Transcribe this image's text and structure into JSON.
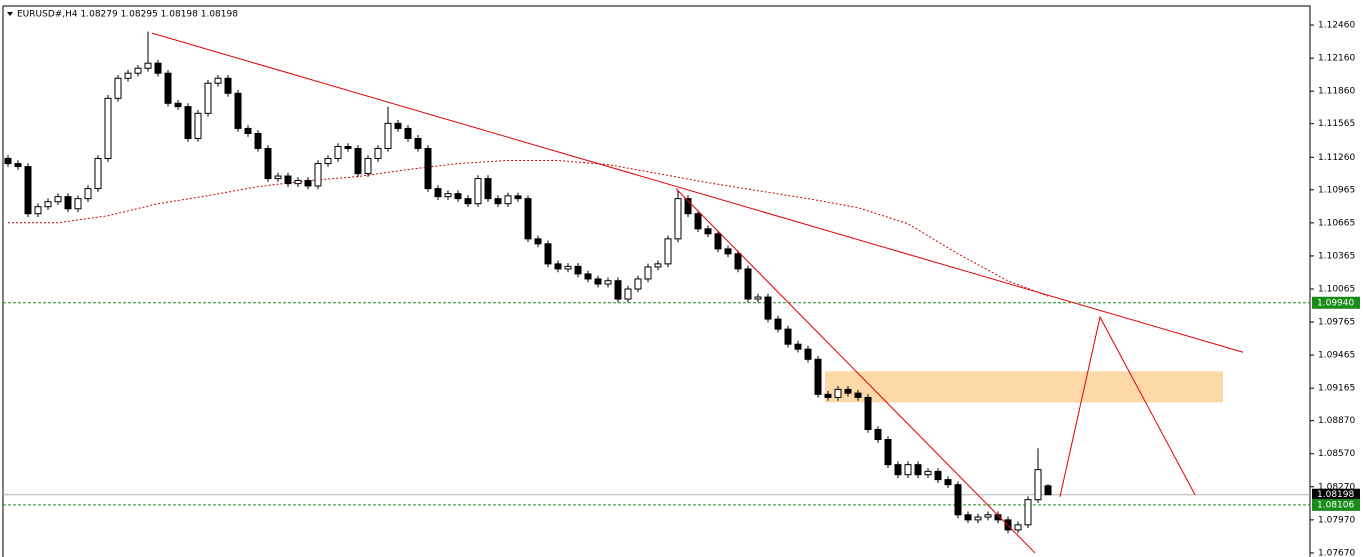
{
  "chart_data": {
    "type": "candlestick",
    "title": "EURUSD#,H4  1.08279 1.08295 1.08198 1.08198",
    "xlim": [
      -0.5,
      130.2
    ],
    "ylim": [
      1.07633,
      1.12633
    ],
    "yticks": [
      {
        "value": 1.1246,
        "label": "1.12460"
      },
      {
        "value": 1.1216,
        "label": "1.12160"
      },
      {
        "value": 1.1186,
        "label": "1.11860"
      },
      1.11565,
      {
        "value": 1.1126,
        "label": "1.11260"
      },
      1.10965,
      1.10665,
      1.10365,
      1.10065,
      1.09765,
      1.09465,
      1.09165,
      {
        "value": 1.0887,
        "label": "1.08870"
      },
      {
        "value": 1.0857,
        "label": "1.08570"
      },
      {
        "value": 1.0827,
        "label": "1.08270"
      },
      {
        "value": 1.0797,
        "label": "1.07970"
      },
      {
        "value": 1.0767,
        "label": "1.07670"
      }
    ],
    "up_color": "#ffffff",
    "down_color": "#000000",
    "open": [
      1.1125,
      1.11203,
      1.11176,
      1.10748,
      1.10812,
      1.10857,
      1.10903,
      1.10793,
      1.10885,
      1.10976,
      1.11249,
      1.11795,
      1.11977,
      1.12023,
      1.12068,
      1.12114,
      1.12023,
      1.1175,
      1.1172,
      1.11431,
      1.11659,
      1.11932,
      1.11977,
      1.11841,
      1.11522,
      1.11476,
      1.1134,
      1.11067,
      1.1109,
      1.11021,
      1.1105,
      1.11,
      1.11203,
      1.11249,
      1.11358,
      1.1134,
      1.11112,
      1.11249,
      1.1134,
      1.11568,
      1.11522,
      1.11431,
      1.1134,
      1.10976,
      1.10903,
      1.1093,
      1.10885,
      1.10839,
      1.11067,
      1.10885,
      1.10839,
      1.1091,
      1.10885,
      1.1052,
      1.10475,
      1.10293,
      1.10247,
      1.1027,
      1.10202,
      1.10156,
      1.1011,
      1.1014,
      1.09974,
      1.10065,
      1.10156,
      1.10265,
      1.10293,
      1.1052,
      1.10885,
      1.10748,
      1.10611,
      1.10566,
      1.10429,
      1.10384,
      1.10247,
      1.09974,
      1.09992,
      1.09792,
      1.09701,
      1.09564,
      1.09519,
      1.09427,
      1.09109,
      1.09081,
      1.09154,
      1.0912,
      1.09081,
      1.0879,
      1.08699,
      1.08471,
      1.0838,
      1.08471,
      1.0838,
      1.0841,
      1.08335,
      1.08289,
      1.08016,
      1.0797,
      1.07995,
      1.08016,
      1.0797,
      1.07879,
      1.07925,
      1.08153,
      1.08279
    ],
    "high": [
      1.1128,
      1.11233,
      1.11206,
      1.10842,
      1.10887,
      1.10933,
      1.10933,
      1.10915,
      1.11006,
      1.11279,
      1.11825,
      1.12007,
      1.12053,
      1.12098,
      1.124,
      1.12144,
      1.12053,
      1.1178,
      1.1175,
      1.11689,
      1.11962,
      1.12007,
      1.12007,
      1.11871,
      1.11552,
      1.11506,
      1.1137,
      1.1112,
      1.1112,
      1.1108,
      1.1108,
      1.11233,
      1.11279,
      1.11388,
      1.11388,
      1.1137,
      1.11279,
      1.1137,
      1.1172,
      1.11598,
      1.11552,
      1.11461,
      1.1137,
      1.11006,
      1.1096,
      1.1096,
      1.10915,
      1.11097,
      1.11097,
      1.10915,
      1.1094,
      1.1094,
      1.10915,
      1.1055,
      1.10505,
      1.10323,
      1.103,
      1.103,
      1.10232,
      1.10186,
      1.1017,
      1.1017,
      1.10095,
      1.10186,
      1.10295,
      1.10323,
      1.1055,
      1.1096,
      1.10915,
      1.10778,
      1.10641,
      1.10596,
      1.10459,
      1.10414,
      1.10277,
      1.10022,
      1.10022,
      1.09822,
      1.09731,
      1.09594,
      1.09549,
      1.09457,
      1.09139,
      1.09184,
      1.09184,
      1.0915,
      1.09111,
      1.0882,
      1.08729,
      1.08501,
      1.08501,
      1.08501,
      1.0844,
      1.0844,
      1.08365,
      1.08319,
      1.08046,
      1.08025,
      1.08046,
      1.08046,
      1.08,
      1.07955,
      1.08183,
      1.0862,
      1.08295
    ],
    "low": [
      1.11173,
      1.11146,
      1.10718,
      1.10718,
      1.10782,
      1.10827,
      1.10763,
      1.10763,
      1.10855,
      1.10946,
      1.11219,
      1.11765,
      1.11947,
      1.11993,
      1.12038,
      1.11993,
      1.1172,
      1.1169,
      1.11401,
      1.11401,
      1.11629,
      1.11902,
      1.11811,
      1.11492,
      1.11446,
      1.1131,
      1.11037,
      1.11037,
      1.10991,
      1.10991,
      1.1097,
      1.1097,
      1.11173,
      1.11219,
      1.1131,
      1.11082,
      1.11082,
      1.11219,
      1.1131,
      1.11492,
      1.11401,
      1.1131,
      1.10946,
      1.10873,
      1.10873,
      1.10855,
      1.10809,
      1.10809,
      1.10855,
      1.10809,
      1.10809,
      1.10855,
      1.1049,
      1.10445,
      1.10263,
      1.10217,
      1.10217,
      1.10172,
      1.10126,
      1.1008,
      1.1008,
      1.09944,
      1.09944,
      1.10035,
      1.10126,
      1.10235,
      1.10263,
      1.1049,
      1.10718,
      1.10581,
      1.10536,
      1.10399,
      1.10354,
      1.10217,
      1.09944,
      1.09944,
      1.09762,
      1.09671,
      1.09534,
      1.09489,
      1.09397,
      1.09079,
      1.09051,
      1.09051,
      1.0909,
      1.09051,
      1.0876,
      1.08669,
      1.08441,
      1.0835,
      1.0835,
      1.0835,
      1.0835,
      1.08305,
      1.08259,
      1.07986,
      1.0794,
      1.0794,
      1.07965,
      1.0794,
      1.07849,
      1.07849,
      1.07895,
      1.08123,
      1.08198
    ],
    "close": [
      1.11203,
      1.11176,
      1.10748,
      1.10812,
      1.10857,
      1.10903,
      1.10793,
      1.10885,
      1.10976,
      1.11249,
      1.11795,
      1.11977,
      1.12023,
      1.12068,
      1.12114,
      1.12023,
      1.1175,
      1.1172,
      1.11431,
      1.11659,
      1.11932,
      1.11977,
      1.11841,
      1.11522,
      1.11476,
      1.1134,
      1.11067,
      1.1109,
      1.11021,
      1.1105,
      1.11,
      1.11203,
      1.11249,
      1.11358,
      1.1134,
      1.11112,
      1.11249,
      1.1134,
      1.11568,
      1.11522,
      1.11431,
      1.1134,
      1.10976,
      1.10903,
      1.1093,
      1.10885,
      1.10839,
      1.11067,
      1.10885,
      1.10839,
      1.1091,
      1.10885,
      1.1052,
      1.10475,
      1.10293,
      1.10247,
      1.1027,
      1.10202,
      1.10156,
      1.1011,
      1.1014,
      1.09974,
      1.10065,
      1.10156,
      1.10265,
      1.10293,
      1.1052,
      1.10885,
      1.10748,
      1.10611,
      1.10566,
      1.10429,
      1.10384,
      1.10247,
      1.09974,
      1.09992,
      1.09792,
      1.09701,
      1.09564,
      1.09519,
      1.09427,
      1.09109,
      1.09081,
      1.09154,
      1.0912,
      1.09081,
      1.0879,
      1.08699,
      1.08471,
      1.0838,
      1.08471,
      1.0838,
      1.0841,
      1.08335,
      1.08289,
      1.08016,
      1.0797,
      1.07995,
      1.08016,
      1.0797,
      1.07879,
      1.07925,
      1.08153,
      1.08426,
      1.08198
    ],
    "moving_average": {
      "color": "#cc0000",
      "x": [
        0,
        5,
        10,
        15,
        20,
        25,
        30,
        35,
        40,
        45,
        50,
        55,
        60,
        65,
        70,
        75,
        80,
        85,
        90,
        95,
        100,
        104
      ],
      "values": [
        1.10666,
        1.10666,
        1.1073,
        1.10839,
        1.10912,
        1.10994,
        1.11048,
        1.11085,
        1.11149,
        1.11203,
        1.11231,
        1.11231,
        1.11194,
        1.11112,
        1.1103,
        1.10957,
        1.10885,
        1.10803,
        1.10657,
        1.10384,
        1.10138,
        1.10001
      ]
    },
    "trend_lines": [
      {
        "color": "#e00000",
        "x": [
          14.4,
          123.5
        ],
        "values": [
          1.12387,
          1.09491
        ]
      },
      {
        "color": "#e00000",
        "x": [
          66.8,
          102.7
        ],
        "values": [
          1.10976,
          1.0767
        ]
      },
      {
        "color": "#e00000",
        "x": [
          105.2,
          109.2,
          118.7
        ],
        "values": [
          1.0818,
          1.0981,
          1.08198
        ]
      }
    ],
    "zone": {
      "color": "#fdd9a8",
      "x": [
        81.7,
        121.5
      ],
      "values": [
        1.09318,
        1.09036
      ]
    },
    "price_lines": [
      {
        "value": 1.0994,
        "label": "1.09940",
        "color": "#1a8a1a",
        "style": "dashed"
      },
      {
        "value": 1.08198,
        "label": "1.08198",
        "color": "#b0b0b0",
        "style": "solid"
      },
      {
        "value": 1.08106,
        "label": "1.08106",
        "color": "#1a8a1a",
        "style": "dashed"
      }
    ]
  }
}
